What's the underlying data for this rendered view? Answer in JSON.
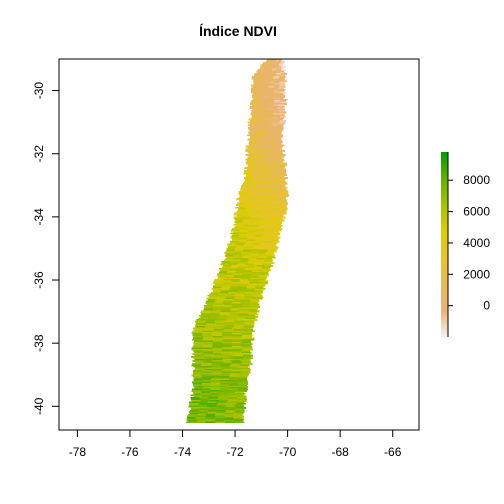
{
  "chart_data": {
    "type": "heatmap",
    "title": "Índice NDVI",
    "xlabel": "",
    "ylabel": "",
    "xlim": [
      -78.7,
      -65.0
    ],
    "ylim": [
      -40.75,
      -29.0
    ],
    "x_ticks": [
      -78,
      -76,
      -74,
      -72,
      -70,
      -68,
      -66
    ],
    "x_tick_labels": [
      "-78",
      "-76",
      "-74",
      "-72",
      "-70",
      "-68",
      "-66"
    ],
    "y_ticks": [
      -30,
      -32,
      -34,
      -36,
      -38,
      -40
    ],
    "y_tick_labels": [
      "-30",
      "-32",
      "-34",
      "-36",
      "-38",
      "-40"
    ],
    "legend": {
      "placement": "right",
      "range": [
        -2000,
        9800
      ],
      "ticks": [
        0,
        2000,
        4000,
        6000,
        8000
      ],
      "tick_labels": [
        "0",
        "2000",
        "4000",
        "6000",
        "8000"
      ],
      "colors": [
        "#f2f2f2",
        "#ecb176",
        "#e6ba56",
        "#e8c32e",
        "#dbcd06",
        "#a8c200",
        "#64b000",
        "#009e00"
      ]
    },
    "raster_extent": {
      "lon_range": [
        -74.0,
        -70.0
      ],
      "lat_range": [
        -40.5,
        -29.0
      ]
    },
    "raster_profile": [
      {
        "lat": -29.0,
        "lon_west": -70.8,
        "lon_east": -70.2,
        "ndvi": 900
      },
      {
        "lat": -29.5,
        "lon_west": -71.3,
        "lon_east": -70.1,
        "ndvi": 1000
      },
      {
        "lat": -30.5,
        "lon_west": -71.4,
        "lon_east": -70.1,
        "ndvi": 1300
      },
      {
        "lat": -31.5,
        "lon_west": -71.5,
        "lon_east": -70.2,
        "ndvi": 1900
      },
      {
        "lat": -32.5,
        "lon_west": -71.6,
        "lon_east": -70.1,
        "ndvi": 3000
      },
      {
        "lat": -33.5,
        "lon_west": -71.9,
        "lon_east": -70.0,
        "ndvi": 4300
      },
      {
        "lat": -34.5,
        "lon_west": -72.1,
        "lon_east": -70.3,
        "ndvi": 5300
      },
      {
        "lat": -35.5,
        "lon_west": -72.5,
        "lon_east": -70.6,
        "ndvi": 5800
      },
      {
        "lat": -36.5,
        "lon_west": -73.0,
        "lon_east": -71.0,
        "ndvi": 6200
      },
      {
        "lat": -37.5,
        "lon_west": -73.6,
        "lon_east": -71.3,
        "ndvi": 6600
      },
      {
        "lat": -38.5,
        "lon_west": -73.6,
        "lon_east": -71.4,
        "ndvi": 7200
      },
      {
        "lat": -39.5,
        "lon_west": -73.6,
        "lon_east": -71.6,
        "ndvi": 7600
      },
      {
        "lat": -40.3,
        "lon_west": -73.8,
        "lon_east": -71.7,
        "ndvi": 7800
      }
    ]
  }
}
